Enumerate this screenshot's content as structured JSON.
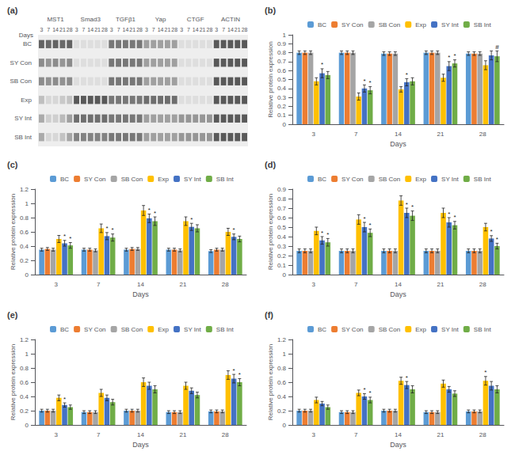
{
  "chart_data": [
    {
      "type": "heatmap",
      "title": "(a)",
      "groups": [
        "MST1",
        "Smad3",
        "TGFβ1",
        "Yap",
        "CTGF",
        "ACTIN"
      ],
      "categories": [
        "3",
        "7",
        "14",
        "21",
        "28"
      ],
      "xlabel": "Days",
      "rows": [
        "BC",
        "SY Con",
        "SB Con",
        "Exp",
        "SY Int",
        "SB Int"
      ],
      "cells": [
        [
          [
            0.25,
            0.28,
            0.25,
            0.28,
            0.25
          ],
          [
            0.85,
            0.85,
            0.85,
            0.85,
            0.85
          ],
          [
            0.35,
            0.35,
            0.35,
            0.35,
            0.35
          ],
          [
            0.55,
            0.55,
            0.55,
            0.55,
            0.55
          ],
          [
            0.85,
            0.85,
            0.85,
            0.85,
            0.85
          ],
          [
            0.2,
            0.2,
            0.2,
            0.2,
            0.2
          ]
        ],
        [
          [
            0.45,
            0.5,
            0.45,
            0.5,
            0.45
          ],
          [
            0.85,
            0.85,
            0.85,
            0.85,
            0.85
          ],
          [
            0.35,
            0.35,
            0.35,
            0.35,
            0.35
          ],
          [
            0.55,
            0.55,
            0.55,
            0.55,
            0.55
          ],
          [
            0.85,
            0.85,
            0.85,
            0.85,
            0.85
          ],
          [
            0.2,
            0.2,
            0.2,
            0.2,
            0.2
          ]
        ],
        [
          [
            0.45,
            0.48,
            0.45,
            0.48,
            0.45
          ],
          [
            0.85,
            0.85,
            0.85,
            0.85,
            0.85
          ],
          [
            0.35,
            0.35,
            0.35,
            0.35,
            0.35
          ],
          [
            0.55,
            0.55,
            0.55,
            0.55,
            0.55
          ],
          [
            0.85,
            0.85,
            0.85,
            0.85,
            0.85
          ],
          [
            0.2,
            0.2,
            0.2,
            0.2,
            0.2
          ]
        ],
        [
          [
            0.7,
            0.82,
            0.82,
            0.75,
            0.72
          ],
          [
            0.2,
            0.2,
            0.2,
            0.2,
            0.2
          ],
          [
            0.35,
            0.35,
            0.35,
            0.35,
            0.35
          ],
          [
            0.3,
            0.3,
            0.3,
            0.3,
            0.3
          ],
          [
            0.85,
            0.85,
            0.85,
            0.85,
            0.85
          ],
          [
            0.2,
            0.2,
            0.2,
            0.2,
            0.2
          ]
        ],
        [
          [
            0.6,
            0.78,
            0.78,
            0.68,
            0.55
          ],
          [
            0.3,
            0.3,
            0.3,
            0.3,
            0.3
          ],
          [
            0.35,
            0.35,
            0.35,
            0.35,
            0.35
          ],
          [
            0.55,
            0.55,
            0.55,
            0.55,
            0.55
          ],
          [
            0.5,
            0.5,
            0.5,
            0.5,
            0.5
          ],
          [
            0.2,
            0.2,
            0.2,
            0.2,
            0.2
          ]
        ],
        [
          [
            0.6,
            0.82,
            0.82,
            0.72,
            0.58
          ],
          [
            0.4,
            0.4,
            0.4,
            0.4,
            0.4
          ],
          [
            0.35,
            0.35,
            0.35,
            0.35,
            0.35
          ],
          [
            0.55,
            0.55,
            0.55,
            0.55,
            0.55
          ],
          [
            0.5,
            0.5,
            0.5,
            0.5,
            0.5
          ],
          [
            0.2,
            0.2,
            0.2,
            0.2,
            0.2
          ]
        ]
      ]
    },
    {
      "type": "bar",
      "title": "(b)",
      "xlabel": "Days",
      "ylabel": "Relative protein expression",
      "categories": [
        3,
        7,
        14,
        21,
        28
      ],
      "ylim": [
        0,
        1.0
      ],
      "yticks": [
        0,
        0.1,
        0.2,
        0.3,
        0.4,
        0.5,
        0.6,
        0.7,
        0.8,
        0.9,
        1.0
      ],
      "grid": false,
      "legend": "top",
      "series": [
        {
          "name": "BC",
          "color": "#5B9BD5",
          "values": [
            0.8,
            0.8,
            0.79,
            0.8,
            0.79
          ],
          "errors": [
            0.02,
            0.02,
            0.02,
            0.02,
            0.02
          ]
        },
        {
          "name": "SY Con",
          "color": "#ED7D31",
          "values": [
            0.8,
            0.8,
            0.79,
            0.8,
            0.79
          ],
          "errors": [
            0.02,
            0.02,
            0.02,
            0.02,
            0.02
          ]
        },
        {
          "name": "SB Con",
          "color": "#A5A5A5",
          "values": [
            0.8,
            0.8,
            0.79,
            0.8,
            0.79
          ],
          "errors": [
            0.02,
            0.02,
            0.02,
            0.02,
            0.02
          ]
        },
        {
          "name": "Exp",
          "color": "#FFC000",
          "values": [
            0.48,
            0.31,
            0.39,
            0.52,
            0.66
          ],
          "errors": [
            0.04,
            0.04,
            0.03,
            0.04,
            0.05
          ]
        },
        {
          "name": "SY Int",
          "color": "#4472C4",
          "values": [
            0.57,
            0.4,
            0.47,
            0.65,
            0.77
          ],
          "errors": [
            0.05,
            0.04,
            0.04,
            0.05,
            0.05
          ],
          "stars": [
            "*",
            "*",
            "*",
            "*",
            null
          ]
        },
        {
          "name": "SB Int",
          "color": "#70AD47",
          "values": [
            0.55,
            0.38,
            0.48,
            0.68,
            0.76
          ],
          "errors": [
            0.04,
            0.04,
            0.04,
            0.04,
            0.06
          ],
          "stars": [
            null,
            "*",
            null,
            "*",
            "#"
          ]
        }
      ]
    },
    {
      "type": "bar",
      "title": "(c)",
      "xlabel": "Days",
      "ylabel": "Relative protein expression",
      "categories": [
        3,
        7,
        14,
        21,
        28
      ],
      "ylim": [
        0,
        1.2
      ],
      "yticks": [
        0,
        0.2,
        0.4,
        0.6,
        0.8,
        1.0,
        1.2
      ],
      "grid": false,
      "legend": "top",
      "series": [
        {
          "name": "BC",
          "color": "#5B9BD5",
          "values": [
            0.35,
            0.35,
            0.35,
            0.35,
            0.33
          ],
          "errors": [
            0.02,
            0.02,
            0.02,
            0.02,
            0.02
          ]
        },
        {
          "name": "SY Con",
          "color": "#ED7D31",
          "values": [
            0.36,
            0.35,
            0.36,
            0.35,
            0.35
          ],
          "errors": [
            0.02,
            0.02,
            0.02,
            0.02,
            0.02
          ]
        },
        {
          "name": "SB Con",
          "color": "#A5A5A5",
          "values": [
            0.35,
            0.34,
            0.36,
            0.34,
            0.35
          ],
          "errors": [
            0.02,
            0.02,
            0.02,
            0.02,
            0.02
          ]
        },
        {
          "name": "Exp",
          "color": "#FFC000",
          "values": [
            0.5,
            0.65,
            0.9,
            0.75,
            0.6
          ],
          "errors": [
            0.05,
            0.06,
            0.07,
            0.06,
            0.05
          ]
        },
        {
          "name": "SY Int",
          "color": "#4472C4",
          "values": [
            0.44,
            0.54,
            0.79,
            0.67,
            0.53
          ],
          "errors": [
            0.04,
            0.05,
            0.06,
            0.05,
            0.04
          ],
          "stars": [
            "*",
            "*",
            "*",
            "*",
            "*"
          ]
        },
        {
          "name": "SB Int",
          "color": "#70AD47",
          "values": [
            0.41,
            0.52,
            0.75,
            0.65,
            0.5
          ],
          "errors": [
            0.04,
            0.05,
            0.06,
            0.05,
            0.04
          ],
          "stars": [
            "*",
            "*",
            "*",
            null,
            null
          ]
        }
      ]
    },
    {
      "type": "bar",
      "title": "(d)",
      "xlabel": "Days",
      "ylabel": "Relative protein expression",
      "categories": [
        3,
        7,
        14,
        21,
        28
      ],
      "ylim": [
        0,
        0.9
      ],
      "yticks": [
        0,
        0.1,
        0.2,
        0.3,
        0.4,
        0.5,
        0.6,
        0.7,
        0.8,
        0.9
      ],
      "grid": false,
      "legend": "top",
      "series": [
        {
          "name": "BC",
          "color": "#5B9BD5",
          "values": [
            0.25,
            0.25,
            0.25,
            0.25,
            0.25
          ],
          "errors": [
            0.02,
            0.02,
            0.02,
            0.02,
            0.02
          ]
        },
        {
          "name": "SY Con",
          "color": "#ED7D31",
          "values": [
            0.25,
            0.25,
            0.25,
            0.25,
            0.25
          ],
          "errors": [
            0.02,
            0.02,
            0.02,
            0.02,
            0.02
          ]
        },
        {
          "name": "SB Con",
          "color": "#A5A5A5",
          "values": [
            0.25,
            0.25,
            0.25,
            0.25,
            0.25
          ],
          "errors": [
            0.02,
            0.02,
            0.02,
            0.02,
            0.02
          ]
        },
        {
          "name": "Exp",
          "color": "#FFC000",
          "values": [
            0.46,
            0.58,
            0.78,
            0.65,
            0.5
          ],
          "errors": [
            0.04,
            0.05,
            0.05,
            0.05,
            0.04
          ]
        },
        {
          "name": "SY Int",
          "color": "#4472C4",
          "values": [
            0.36,
            0.5,
            0.65,
            0.55,
            0.38
          ],
          "errors": [
            0.04,
            0.05,
            0.05,
            0.05,
            0.03
          ],
          "stars": [
            "*",
            "*",
            "*",
            "*",
            "*"
          ]
        },
        {
          "name": "SB Int",
          "color": "#70AD47",
          "values": [
            0.34,
            0.44,
            0.62,
            0.52,
            0.3
          ],
          "errors": [
            0.04,
            0.04,
            0.05,
            0.04,
            0.03
          ],
          "stars": [
            "*",
            "*",
            "*",
            "*",
            "*"
          ]
        }
      ]
    },
    {
      "type": "bar",
      "title": "(e)",
      "xlabel": "Days",
      "ylabel": "Relative protein expression",
      "categories": [
        3,
        7,
        14,
        21,
        28
      ],
      "ylim": [
        0,
        1.2
      ],
      "yticks": [
        0,
        0.2,
        0.4,
        0.6,
        0.8,
        1.0,
        1.2
      ],
      "grid": false,
      "legend": "top",
      "series": [
        {
          "name": "BC",
          "color": "#5B9BD5",
          "values": [
            0.2,
            0.18,
            0.2,
            0.18,
            0.19
          ],
          "errors": [
            0.02,
            0.02,
            0.02,
            0.02,
            0.02
          ]
        },
        {
          "name": "SY Con",
          "color": "#ED7D31",
          "values": [
            0.2,
            0.18,
            0.2,
            0.18,
            0.19
          ],
          "errors": [
            0.02,
            0.02,
            0.02,
            0.02,
            0.02
          ]
        },
        {
          "name": "SB Con",
          "color": "#A5A5A5",
          "values": [
            0.2,
            0.18,
            0.2,
            0.18,
            0.19
          ],
          "errors": [
            0.02,
            0.02,
            0.02,
            0.02,
            0.02
          ]
        },
        {
          "name": "Exp",
          "color": "#FFC000",
          "values": [
            0.38,
            0.45,
            0.6,
            0.55,
            0.7
          ],
          "errors": [
            0.04,
            0.05,
            0.06,
            0.05,
            0.06
          ]
        },
        {
          "name": "SY Int",
          "color": "#4472C4",
          "values": [
            0.28,
            0.38,
            0.55,
            0.48,
            0.65
          ],
          "errors": [
            0.03,
            0.04,
            0.05,
            0.04,
            0.06
          ],
          "stars": [
            "*",
            null,
            null,
            null,
            "*"
          ]
        },
        {
          "name": "SB Int",
          "color": "#70AD47",
          "values": [
            0.25,
            0.32,
            0.5,
            0.42,
            0.6
          ],
          "errors": [
            0.03,
            0.04,
            0.05,
            0.04,
            0.05
          ],
          "stars": [
            null,
            null,
            null,
            null,
            "*"
          ]
        }
      ]
    },
    {
      "type": "bar",
      "title": "(f)",
      "xlabel": "Days",
      "ylabel": "Relative protein expression",
      "categories": [
        3,
        7,
        14,
        21,
        28
      ],
      "ylim": [
        0,
        1.2
      ],
      "yticks": [
        0,
        0.2,
        0.4,
        0.6,
        0.8,
        1.0,
        1.2
      ],
      "grid": false,
      "legend": "top",
      "series": [
        {
          "name": "BC",
          "color": "#5B9BD5",
          "values": [
            0.2,
            0.18,
            0.2,
            0.18,
            0.19
          ],
          "errors": [
            0.02,
            0.02,
            0.02,
            0.02,
            0.02
          ]
        },
        {
          "name": "SY Con",
          "color": "#ED7D31",
          "values": [
            0.2,
            0.18,
            0.2,
            0.18,
            0.19
          ],
          "errors": [
            0.02,
            0.02,
            0.02,
            0.02,
            0.02
          ]
        },
        {
          "name": "SB Con",
          "color": "#A5A5A5",
          "values": [
            0.2,
            0.18,
            0.2,
            0.18,
            0.19
          ],
          "errors": [
            0.02,
            0.02,
            0.02,
            0.02,
            0.02
          ]
        },
        {
          "name": "Exp",
          "color": "#FFC000",
          "values": [
            0.35,
            0.45,
            0.62,
            0.58,
            0.62
          ],
          "errors": [
            0.04,
            0.04,
            0.05,
            0.05,
            0.06
          ],
          "stars": [
            null,
            null,
            null,
            null,
            "*"
          ]
        },
        {
          "name": "SY Int",
          "color": "#4472C4",
          "values": [
            0.3,
            0.4,
            0.56,
            0.5,
            0.55
          ],
          "errors": [
            0.03,
            0.04,
            0.05,
            0.04,
            0.06
          ],
          "stars": [
            null,
            "*",
            "*",
            null,
            null
          ]
        },
        {
          "name": "SB Int",
          "color": "#70AD47",
          "values": [
            0.25,
            0.35,
            0.5,
            0.44,
            0.5
          ],
          "errors": [
            0.03,
            0.04,
            0.05,
            0.04,
            0.05
          ],
          "stars": [
            null,
            "*",
            null,
            null,
            null
          ]
        }
      ]
    }
  ]
}
